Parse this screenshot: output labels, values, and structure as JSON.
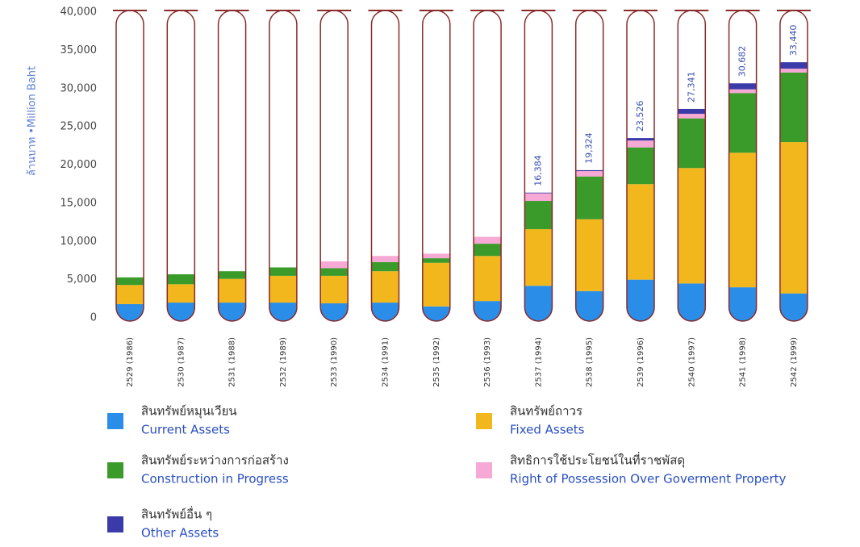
{
  "chart_data": {
    "type": "bar",
    "stacked": true,
    "y_label": "ล้านบาท •Million Baht",
    "categories": [
      "2529 (1986)",
      "2530 (1987)",
      "2531 (1988)",
      "2532 (1989)",
      "2533 (1990)",
      "2534 (1991)",
      "2535 (1992)",
      "2536 (1993)",
      "2537 (1994)",
      "2538 (1995)",
      "2539 (1996)",
      "2540 (1997)",
      "2541 (1998)",
      "2542 (1999)"
    ],
    "series": [
      {
        "name": "สินทรัพย์หมุนเวียน",
        "name_en": "Current Assets",
        "color": "#2a8ee8",
        "values": [
          1800,
          2000,
          2000,
          2000,
          1900,
          2000,
          1500,
          2200,
          4200,
          3500,
          5000,
          4500,
          4000,
          3200
        ]
      },
      {
        "name": "สินทรัพย์ถาวร",
        "name_en": "Fixed Assets",
        "color": "#f2b71c",
        "values": [
          2500,
          2400,
          3100,
          3500,
          3600,
          4100,
          5700,
          5900,
          7400,
          9400,
          12500,
          15100,
          17600,
          19800
        ]
      },
      {
        "name": "สินทรัพย์ระหว่างการก่อสร้าง",
        "name_en": "Construction in Progress",
        "color": "#3a9a2a",
        "values": [
          1000,
          1300,
          1000,
          1100,
          1000,
          1200,
          600,
          1600,
          3700,
          5600,
          4800,
          6500,
          7800,
          9100
        ]
      },
      {
        "name": "สิทธิการใช้ประโยชน์ในที่ราชพัสดุ",
        "name_en": "Right of Possession Over Goverment Property",
        "color": "#f5a9d4",
        "values": [
          0,
          0,
          0,
          0,
          900,
          800,
          600,
          900,
          1000,
          700,
          900,
          600,
          500,
          500
        ]
      },
      {
        "name": "สินทรัพย์อื่น ๆ",
        "name_en": "Other Assets",
        "color": "#3a3aa8",
        "values": [
          0,
          0,
          0,
          0,
          0,
          0,
          0,
          0,
          84,
          124,
          326,
          641,
          782,
          840
        ]
      }
    ],
    "totals": [
      null,
      null,
      null,
      null,
      null,
      null,
      null,
      null,
      16384,
      19324,
      23526,
      27341,
      30682,
      33440
    ],
    "total_labels": [
      null,
      null,
      null,
      null,
      null,
      null,
      null,
      null,
      "16,384",
      "19,324",
      "23,526",
      "27,341",
      "30,682",
      "33,440"
    ],
    "ylim": [
      0,
      40000
    ],
    "yticks": [
      0,
      {
        "value": 5000,
        "label": "5,000"
      },
      {
        "value": 10000,
        "label": "10,000"
      },
      {
        "value": 15000,
        "label": "15,000"
      },
      {
        "value": 20000,
        "label": "20,000"
      },
      {
        "value": 25000,
        "label": "25,000"
      },
      {
        "value": 30000,
        "label": "30,000"
      },
      {
        "value": 35000,
        "label": "35,000"
      },
      {
        "value": 40000,
        "label": "40,000"
      }
    ],
    "grid": false
  }
}
